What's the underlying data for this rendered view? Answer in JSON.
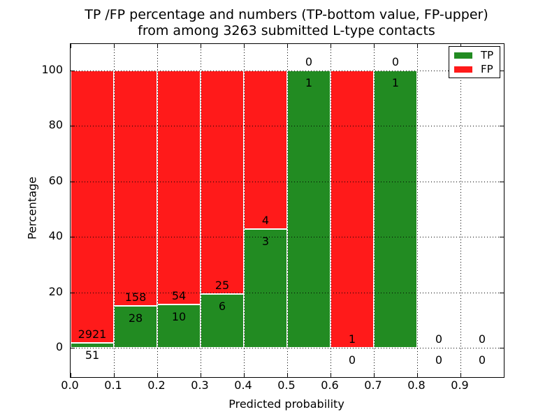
{
  "figure": {
    "title_line1": "TP /FP percentage and numbers (TP-bottom value, FP-upper)",
    "title_line2": "from among 3263 submitted L-type contacts",
    "xlabel": "Predicted probability",
    "ylabel": "Percentage"
  },
  "legend": {
    "position": "upper right",
    "items": [
      {
        "label": "TP",
        "color": "#228b22"
      },
      {
        "label": "FP",
        "color": "#ff1a1a"
      }
    ]
  },
  "chart_data": {
    "type": "bar",
    "stacked": true,
    "normalization": "each bin's TP+FP counts scaled to 100%",
    "title": "TP /FP percentage and numbers (TP-bottom value, FP-upper) from among 3263 submitted L-type contacts",
    "xlabel": "Predicted probability",
    "ylabel": "Percentage",
    "total_contacts": 3263,
    "bin_width": 0.1,
    "bin_starts": [
      0.0,
      0.1,
      0.2,
      0.3,
      0.4,
      0.5,
      0.6,
      0.7,
      0.8,
      0.9
    ],
    "series": [
      {
        "name": "TP",
        "color": "#228b22",
        "counts": [
          51,
          28,
          10,
          6,
          3,
          1,
          0,
          1,
          0,
          0
        ]
      },
      {
        "name": "FP",
        "color": "#ff1a1a",
        "counts": [
          2921,
          158,
          54,
          25,
          4,
          0,
          1,
          0,
          0,
          0
        ]
      }
    ],
    "tp_percent_per_bin": [
      1.72,
      15.05,
      15.63,
      19.35,
      42.86,
      100,
      0,
      100,
      null,
      null
    ],
    "xticks": [
      "0.0",
      "0.1",
      "0.2",
      "0.3",
      "0.4",
      "0.5",
      "0.6",
      "0.7",
      "0.8",
      "0.9"
    ],
    "yticks": [
      0,
      20,
      40,
      60,
      80,
      100
    ],
    "xlim": [
      0,
      1
    ],
    "ylim": [
      -10.5,
      109.5
    ],
    "grid": true,
    "grid_style": "dotted",
    "legend_position": "upper right",
    "annotation_rule": "FP count above top of TP segment, TP count below it"
  }
}
